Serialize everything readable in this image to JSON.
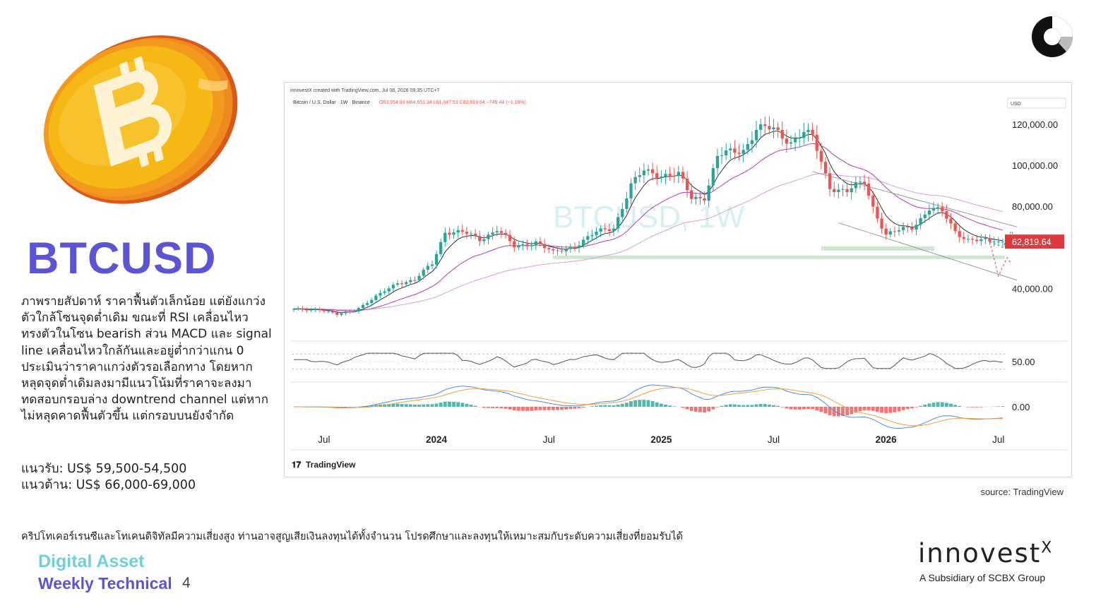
{
  "headline": "BTCUSD",
  "analysis_text": "ภาพรายสัปดาห์ ราคาฟื้นตัวเล็กน้อย แต่ยังแกว่งตัวใกล้โซนจุดต่ำเดิม ขณะที่ RSI เคลื่อนไหวทรงตัวในโซน bearish ส่วน MACD และ signal line เคลื่อนไหวใกล้กันและอยู่ต่ำกว่าแกน 0 ประเมินว่าราคาแกว่งตัวรอเลือกทาง โดยหากหลุดจุดต่ำเดิมลงมามีแนวโน้มที่ราคาจะลงมาทดสอบกรอบล่าง downtrend channel แต่หากไม่หลุดคาดฟื้นตัวขึ้น แต่กรอบบนยังจำกัด",
  "support": "แนวรับ: US$ 59,500-54,500",
  "resistance": "แนวต้าน: US$ 66,000-69,000",
  "source": "source: TradingView",
  "disclaimer": "คริปโทเคอร์เรนซีและโทเคนดิจิทัลมีความเสี่ยงสูง ท่านอาจสูญเสียเงินลงทุนได้ทั้งจำนวน โปรดศึกษาและลงทุนให้เหมาะสมกับระดับความเสี่ยงที่ยอมรับได้",
  "footer": {
    "title": "Digital Asset",
    "subtitle": "Weekly Technical",
    "page": "4"
  },
  "logo": {
    "word": "innovest",
    "mark": "X",
    "tagline": "A Subsidiary of SCBX Group"
  },
  "colors": {
    "accent_purple": "#5b55d6",
    "accent_teal": "#6fd0d6",
    "up": "#26a69a",
    "down": "#ef5350",
    "coin": "#f5b814",
    "ema_short": "#2f2f2f",
    "ema_mid": "#b23ab8",
    "ema_long": "#d6a0d8",
    "support_zone": "#c8e6c9"
  },
  "chart_data": {
    "type": "candlestick",
    "header": "innovestX created with TradingView.com, Jul 08, 2026 09:35 UTC+7",
    "symbol_line": "Bitcoin / U.S. Dollar · 1W · Binance",
    "ohlc": {
      "open": "O63,954.93",
      "high": "H64,651.34",
      "low": "L61,047.53",
      "close": "C62,819.64",
      "change": "−749.44 (−1.18%)"
    },
    "watermark": "BTCUSD, 1W",
    "currency": "USD",
    "y_ticks": [
      "120,000.00",
      "100,000.00",
      "80,000.00",
      "40,000.00"
    ],
    "y_tick_values": [
      120000,
      100000,
      80000,
      40000
    ],
    "last_price": "62,819.64",
    "last_price_value": 62819.64,
    "y_range": [
      15000,
      130000
    ],
    "x_labels": [
      "Jul",
      "2024",
      "Jul",
      "2025",
      "Jul",
      "2026",
      "Jul"
    ],
    "x_label_weeks": [
      7,
      33,
      59,
      85,
      111,
      137,
      163
    ],
    "weeks": 165,
    "close_anchors": [
      [
        0,
        29500
      ],
      [
        6,
        30000
      ],
      [
        10,
        27000
      ],
      [
        14,
        29500
      ],
      [
        20,
        37000
      ],
      [
        24,
        43000
      ],
      [
        28,
        44000
      ],
      [
        32,
        52000
      ],
      [
        35,
        68000
      ],
      [
        39,
        67000
      ],
      [
        43,
        64000
      ],
      [
        47,
        69000
      ],
      [
        51,
        60000
      ],
      [
        56,
        63000
      ],
      [
        60,
        57000
      ],
      [
        65,
        61000
      ],
      [
        70,
        67000
      ],
      [
        74,
        70000
      ],
      [
        78,
        90000
      ],
      [
        81,
        97000
      ],
      [
        85,
        96000
      ],
      [
        89,
        95000
      ],
      [
        92,
        84000
      ],
      [
        95,
        85000
      ],
      [
        98,
        104000
      ],
      [
        101,
        106000
      ],
      [
        104,
        108000
      ],
      [
        107,
        118000
      ],
      [
        111,
        117000
      ],
      [
        115,
        112000
      ],
      [
        118,
        116000
      ],
      [
        120,
        113000
      ],
      [
        124,
        90000
      ],
      [
        128,
        87000
      ],
      [
        132,
        92000
      ],
      [
        134,
        80000
      ],
      [
        137,
        66000
      ],
      [
        140,
        68000
      ],
      [
        143,
        70000
      ],
      [
        147,
        79000
      ],
      [
        150,
        77000
      ],
      [
        153,
        68000
      ],
      [
        156,
        64000
      ],
      [
        159,
        63000
      ],
      [
        161,
        62819
      ]
    ],
    "support_zone": [
      54500,
      59500
    ],
    "resistance_zone": [
      66000,
      69000
    ],
    "ma_lines": [
      "short EMA (dark)",
      "mid EMA (purple)",
      "long EMA (light purple)"
    ],
    "rsi": {
      "tick": "50.00",
      "level": 50,
      "bands": [
        30,
        70
      ]
    },
    "macd": {
      "tick": "0.00"
    },
    "branding": "TradingView"
  }
}
